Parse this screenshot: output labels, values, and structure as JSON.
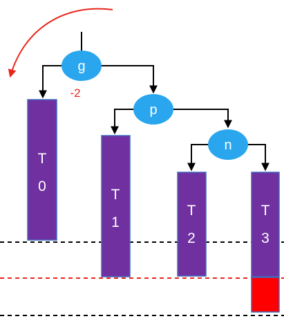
{
  "colors": {
    "node_fill": "#2aa6ee",
    "subtree_fill": "#7030a0",
    "subtree_border": "#3f6bbf",
    "edge": "#000000",
    "rotation_arrow": "#e8251b",
    "overflow_block": "#ff0000",
    "baseline_black": "#000000",
    "baseline_red": "#e8251b"
  },
  "nodes": {
    "g": "g",
    "p": "p",
    "n": "n"
  },
  "balance_factor": "-2",
  "subtrees": {
    "t0": {
      "line1": "T",
      "line2": "0"
    },
    "t1": {
      "line1": "T",
      "line2": "1"
    },
    "t2": {
      "line1": "T",
      "line2": "2"
    },
    "t3": {
      "line1": "T",
      "line2": "3"
    }
  },
  "rotation": {
    "direction_icon": "counterclockwise-arc-arrow-icon"
  }
}
